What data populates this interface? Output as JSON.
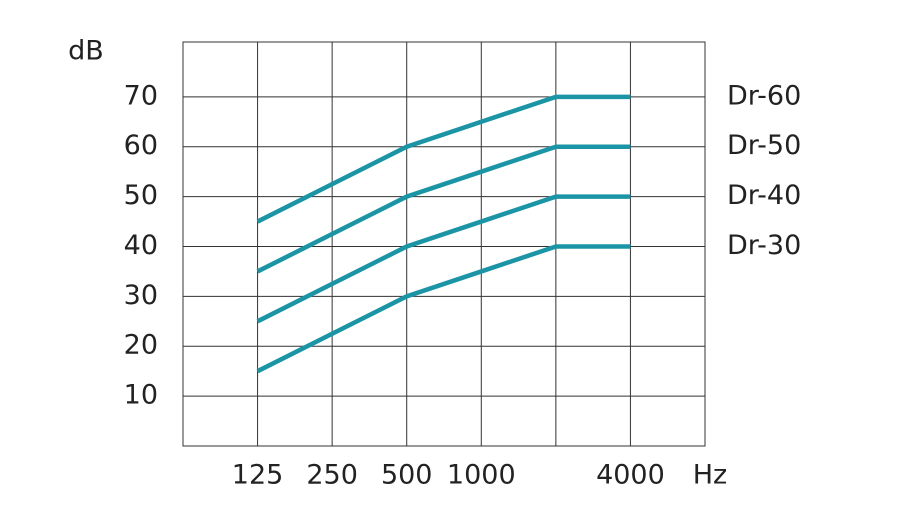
{
  "chart_data": {
    "type": "line",
    "y_label": "dB",
    "x_label": "Hz",
    "categories": [
      null,
      "125",
      "250",
      "500",
      "1000",
      null,
      "4000",
      null
    ],
    "series": [
      {
        "name": "Dr-60",
        "color": "#1b95a5",
        "values": [
          null,
          45,
          52.5,
          60,
          65,
          70,
          70,
          null
        ]
      },
      {
        "name": "Dr-50",
        "color": "#1b95a5",
        "values": [
          null,
          35,
          42.5,
          50,
          55,
          60,
          60,
          null
        ]
      },
      {
        "name": "Dr-40",
        "color": "#1b95a5",
        "values": [
          null,
          25,
          32.5,
          40,
          45,
          50,
          50,
          null
        ]
      },
      {
        "name": "Dr-30",
        "color": "#1b95a5",
        "values": [
          null,
          15,
          22.5,
          30,
          35,
          40,
          40,
          null
        ]
      }
    ],
    "ylim": [
      0,
      81
    ],
    "yticks": [
      10,
      20,
      30,
      40,
      50,
      60,
      70
    ],
    "grid": true
  }
}
